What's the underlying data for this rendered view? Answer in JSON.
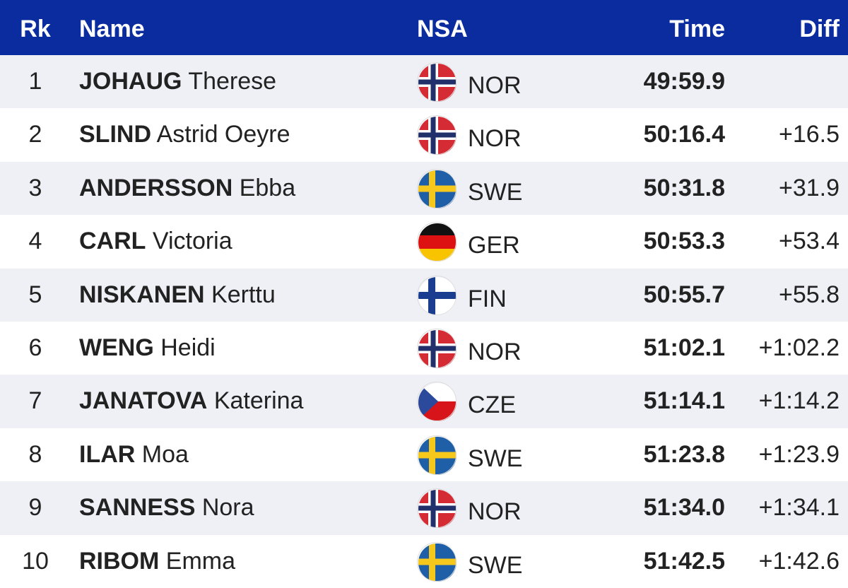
{
  "table": {
    "header": {
      "rk": "Rk",
      "name": "Name",
      "nsa": "NSA",
      "time": "Time",
      "diff": "Diff"
    },
    "rows": [
      {
        "rk": "1",
        "last": "JOHAUG",
        "first": "Therese",
        "nsa": "NOR",
        "time": "49:59.9"
      },
      {
        "rk": "2",
        "last": "SLIND",
        "first": "Astrid Oeyre",
        "nsa": "NOR",
        "time": "50:16.4",
        "diff": "+16.5"
      },
      {
        "rk": "3",
        "last": "ANDERSSON",
        "first": "Ebba",
        "nsa": "SWE",
        "time": "50:31.8",
        "diff": "+31.9"
      },
      {
        "rk": "4",
        "last": "CARL",
        "first": "Victoria",
        "nsa": "GER",
        "time": "50:53.3",
        "diff": "+53.4"
      },
      {
        "rk": "5",
        "last": "NISKANEN",
        "first": "Kerttu",
        "nsa": "FIN",
        "time": "50:55.7",
        "diff": "+55.8"
      },
      {
        "rk": "6",
        "last": "WENG",
        "first": "Heidi",
        "nsa": "NOR",
        "time": "51:02.1",
        "diff": "+1:02.2"
      },
      {
        "rk": "7",
        "last": "JANATOVA",
        "first": "Katerina",
        "nsa": "CZE",
        "time": "51:14.1",
        "diff": "+1:14.2"
      },
      {
        "rk": "8",
        "last": "ILAR",
        "first": "Moa",
        "nsa": "SWE",
        "time": "51:23.8",
        "diff": "+1:23.9"
      },
      {
        "rk": "9",
        "last": "SANNESS",
        "first": "Nora",
        "nsa": "NOR",
        "time": "51:34.0",
        "diff": "+1:34.1"
      },
      {
        "rk": "10",
        "last": "RIBOM",
        "first": "Emma",
        "nsa": "SWE",
        "time": "51:42.5",
        "diff": "+1:42.6"
      }
    ]
  }
}
